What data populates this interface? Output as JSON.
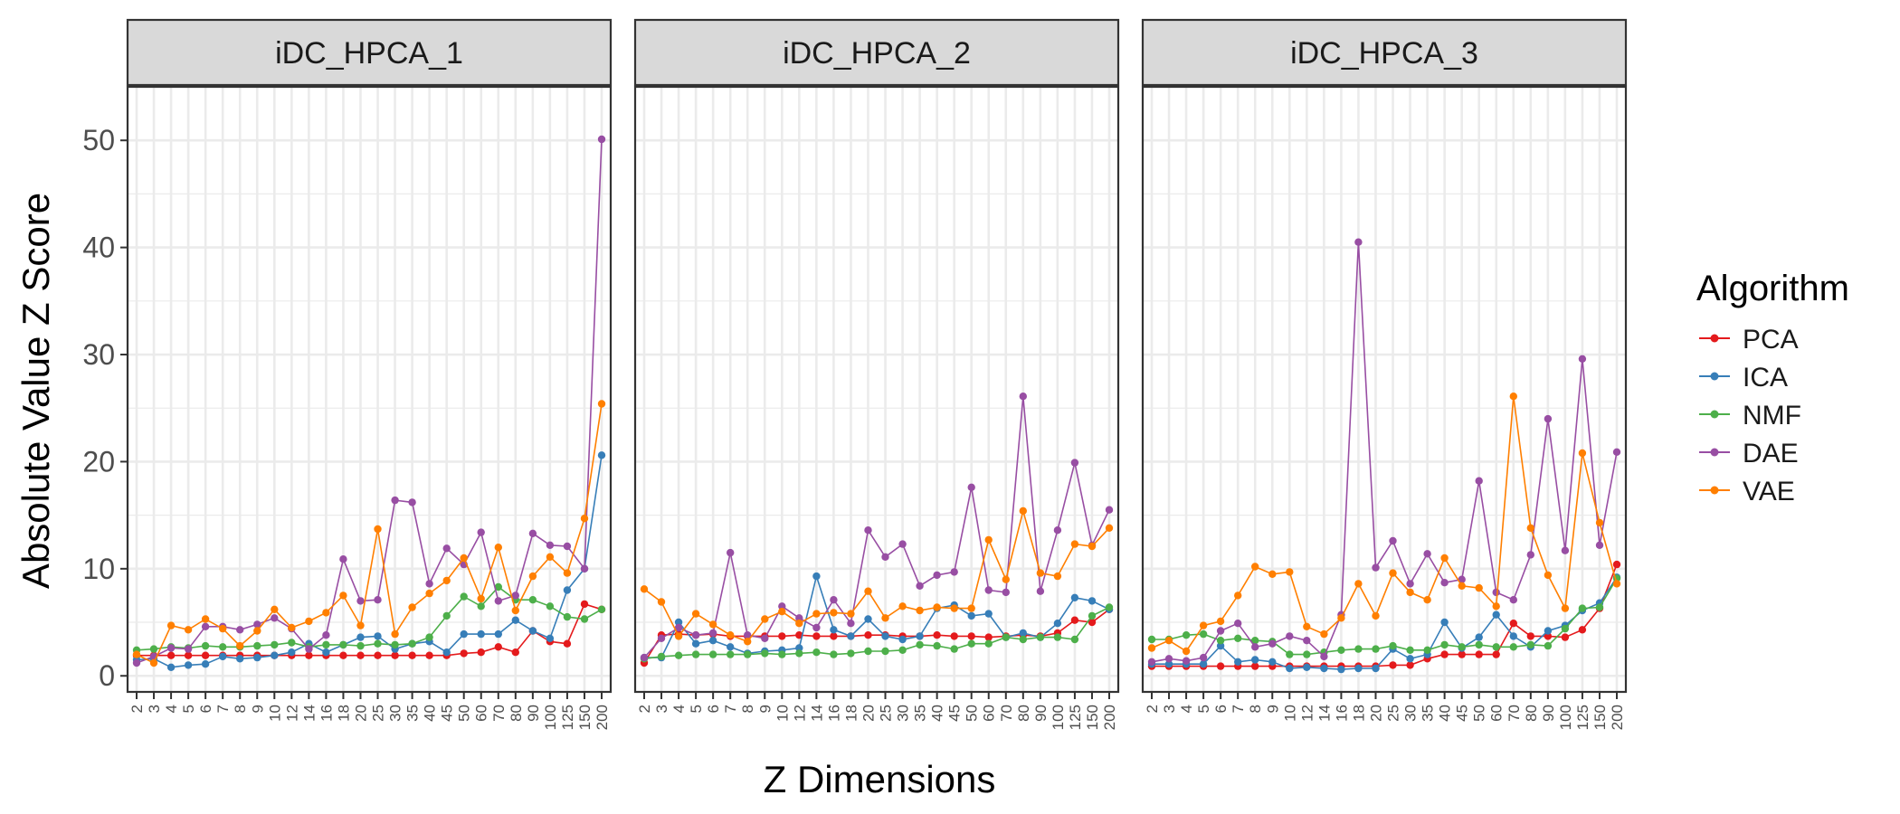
{
  "chart_data": {
    "type": "line",
    "xlabel": "Z Dimensions",
    "ylabel": "Absolute Value Z Score",
    "ylim": [
      -1.5,
      55
    ],
    "y_ticks": [
      "0",
      "10",
      "20",
      "30",
      "40",
      "50"
    ],
    "y_tick_values": [
      0,
      10,
      20,
      30,
      40,
      50
    ],
    "categories": [
      "2",
      "3",
      "4",
      "5",
      "6",
      "7",
      "8",
      "9",
      "10",
      "12",
      "14",
      "16",
      "18",
      "20",
      "25",
      "30",
      "35",
      "40",
      "45",
      "50",
      "60",
      "70",
      "80",
      "90",
      "100",
      "125",
      "150",
      "200"
    ],
    "grid": true,
    "legend": {
      "title": "Algorithm",
      "position": "right",
      "entries": [
        "PCA",
        "ICA",
        "NMF",
        "DAE",
        "VAE"
      ]
    },
    "colors": {
      "PCA": "#e41a1c",
      "ICA": "#377eb8",
      "NMF": "#4daf4a",
      "DAE": "#984ea3",
      "VAE": "#ff7f00",
      "panel_strip": "#d9d9d9",
      "grid": "#ebebeb"
    },
    "panels": [
      {
        "title": "iDC_HPCA_1",
        "series": [
          {
            "name": "PCA",
            "values": [
              1.9,
              1.9,
              1.9,
              1.9,
              1.9,
              1.9,
              1.9,
              1.9,
              1.9,
              1.9,
              1.9,
              1.9,
              1.9,
              1.9,
              1.9,
              1.9,
              1.9,
              1.9,
              1.9,
              2.1,
              2.2,
              2.7,
              2.2,
              4.2,
              3.2,
              3.0,
              6.7,
              6.2
            ]
          },
          {
            "name": "ICA",
            "values": [
              1.5,
              1.6,
              0.8,
              1.0,
              1.1,
              1.8,
              1.6,
              1.7,
              1.9,
              2.2,
              3.0,
              2.2,
              2.9,
              3.6,
              3.7,
              2.5,
              3.0,
              3.2,
              2.2,
              3.9,
              3.9,
              3.9,
              5.2,
              4.2,
              3.5,
              8.0,
              10.0,
              20.6
            ]
          },
          {
            "name": "NMF",
            "values": [
              2.4,
              2.5,
              2.7,
              2.6,
              2.8,
              2.7,
              2.7,
              2.8,
              2.9,
              3.1,
              2.7,
              2.9,
              2.9,
              2.8,
              3.0,
              2.9,
              3.0,
              3.6,
              5.6,
              7.4,
              6.5,
              8.3,
              7.1,
              7.1,
              6.5,
              5.5,
              5.3,
              6.2
            ]
          },
          {
            "name": "DAE",
            "values": [
              1.2,
              1.8,
              2.6,
              2.5,
              4.6,
              4.6,
              4.3,
              4.8,
              5.4,
              4.4,
              2.5,
              3.8,
              10.9,
              7.0,
              7.1,
              16.4,
              16.2,
              8.6,
              11.9,
              10.4,
              13.4,
              7.0,
              7.5,
              13.3,
              12.2,
              12.1,
              10.0,
              50.1
            ]
          },
          {
            "name": "VAE",
            "values": [
              2.0,
              1.2,
              4.7,
              4.3,
              5.3,
              4.4,
              2.8,
              4.2,
              6.2,
              4.5,
              5.1,
              5.9,
              7.5,
              4.7,
              13.7,
              3.9,
              6.4,
              7.7,
              8.9,
              11.0,
              7.2,
              12.0,
              6.1,
              9.3,
              11.1,
              9.6,
              14.7,
              25.4
            ]
          }
        ]
      },
      {
        "title": "iDC_HPCA_2",
        "series": [
          {
            "name": "PCA",
            "values": [
              1.2,
              3.8,
              3.9,
              3.8,
              3.9,
              3.7,
              3.7,
              3.7,
              3.7,
              3.8,
              3.7,
              3.7,
              3.7,
              3.8,
              3.8,
              3.7,
              3.7,
              3.8,
              3.7,
              3.7,
              3.6,
              3.7,
              3.8,
              3.7,
              4.0,
              5.2,
              5.0,
              6.2
            ]
          },
          {
            "name": "ICA",
            "values": [
              1.7,
              1.7,
              5.0,
              3.0,
              3.3,
              2.7,
              2.1,
              2.3,
              2.4,
              2.6,
              9.3,
              4.3,
              3.7,
              5.3,
              3.7,
              3.4,
              3.7,
              6.3,
              6.6,
              5.6,
              5.8,
              3.6,
              4.0,
              3.6,
              4.9,
              7.3,
              7.0,
              6.2
            ]
          },
          {
            "name": "NMF",
            "values": [
              1.6,
              1.8,
              1.9,
              2.0,
              2.0,
              2.0,
              2.0,
              2.1,
              2.0,
              2.1,
              2.2,
              2.0,
              2.1,
              2.3,
              2.3,
              2.4,
              2.9,
              2.8,
              2.5,
              3.0,
              3.0,
              3.6,
              3.4,
              3.6,
              3.6,
              3.4,
              5.6,
              6.4
            ]
          },
          {
            "name": "DAE",
            "values": [
              1.7,
              3.5,
              4.5,
              3.8,
              4.0,
              11.5,
              3.8,
              3.5,
              6.5,
              5.4,
              4.5,
              7.1,
              4.9,
              13.6,
              11.1,
              12.3,
              8.4,
              9.4,
              9.7,
              17.6,
              8.0,
              7.8,
              26.1,
              7.9,
              13.6,
              19.9,
              12.2,
              15.5
            ]
          },
          {
            "name": "VAE",
            "values": [
              8.1,
              6.9,
              3.7,
              5.8,
              4.8,
              3.8,
              3.2,
              5.3,
              6.0,
              4.9,
              5.8,
              5.9,
              5.8,
              7.9,
              5.4,
              6.5,
              6.1,
              6.4,
              6.3,
              6.3,
              12.7,
              9.0,
              15.4,
              9.6,
              9.3,
              12.3,
              12.1,
              13.8
            ]
          }
        ]
      },
      {
        "title": "iDC_HPCA_3",
        "series": [
          {
            "name": "PCA",
            "values": [
              0.9,
              0.9,
              0.9,
              0.9,
              0.9,
              0.9,
              0.9,
              0.9,
              0.9,
              0.9,
              0.9,
              0.9,
              0.9,
              0.9,
              1.0,
              1.0,
              1.6,
              2.0,
              2.0,
              2.0,
              2.0,
              4.9,
              3.7,
              3.7,
              3.6,
              4.3,
              6.3,
              10.4
            ]
          },
          {
            "name": "ICA",
            "values": [
              1.1,
              1.1,
              1.1,
              1.1,
              2.8,
              1.3,
              1.5,
              1.3,
              0.7,
              0.8,
              0.7,
              0.6,
              0.7,
              0.7,
              2.5,
              1.6,
              2.0,
              5.0,
              2.6,
              3.6,
              5.7,
              3.7,
              2.7,
              4.2,
              4.7,
              6.1,
              6.8,
              9.2
            ]
          },
          {
            "name": "NMF",
            "values": [
              3.4,
              3.4,
              3.8,
              3.9,
              3.3,
              3.5,
              3.3,
              3.2,
              2.0,
              2.0,
              2.2,
              2.4,
              2.5,
              2.5,
              2.8,
              2.4,
              2.4,
              2.9,
              2.7,
              2.9,
              2.7,
              2.7,
              2.9,
              2.8,
              4.4,
              6.3,
              6.4,
              9.1
            ]
          },
          {
            "name": "DAE",
            "values": [
              1.3,
              1.6,
              1.4,
              1.7,
              4.2,
              4.9,
              2.7,
              3.0,
              3.7,
              3.3,
              1.8,
              5.7,
              40.5,
              10.1,
              12.6,
              8.6,
              11.4,
              8.7,
              9.0,
              18.2,
              7.8,
              7.1,
              11.3,
              24.0,
              11.7,
              29.6,
              12.2,
              20.9
            ]
          },
          {
            "name": "VAE",
            "values": [
              2.6,
              3.3,
              2.3,
              4.7,
              5.1,
              7.5,
              10.2,
              9.5,
              9.7,
              4.6,
              3.9,
              5.4,
              8.6,
              5.6,
              9.6,
              7.8,
              7.1,
              11.0,
              8.4,
              8.2,
              6.5,
              26.1,
              13.8,
              9.4,
              6.3,
              20.8,
              14.3,
              8.6
            ]
          }
        ]
      }
    ]
  }
}
